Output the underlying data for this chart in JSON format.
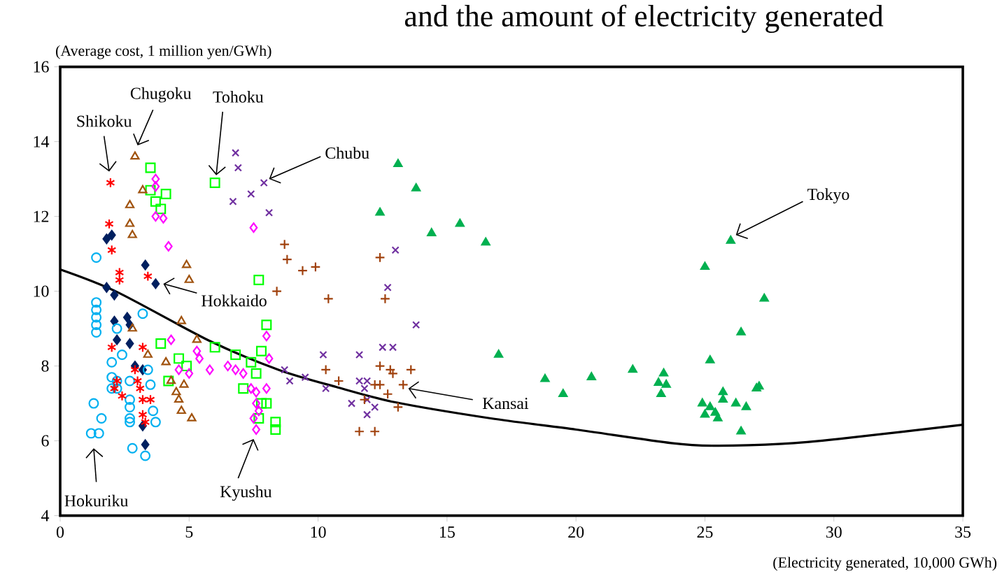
{
  "chart_data": {
    "type": "scatter",
    "title": "and the amount of electricity generated",
    "xlabel": "(Electricity generated, 10,000 GWh)",
    "ylabel": "(Average cost, 1 million yen/GWh)",
    "xlim": [
      0,
      35
    ],
    "ylim": [
      4,
      16
    ],
    "xticks": [
      0,
      5,
      10,
      15,
      20,
      25,
      30,
      35
    ],
    "yticks": [
      4,
      6,
      8,
      10,
      12,
      14,
      16
    ],
    "grid": false,
    "series": [
      {
        "name": "Hokkaido",
        "color": "#002060",
        "marker": "diamond",
        "x": [
          2.0,
          1.8,
          2.0,
          3.3,
          3.7,
          1.8,
          2.1,
          2.1,
          2.6,
          2.7,
          2.2,
          2.7,
          2.9,
          3.2,
          3.2,
          3.3
        ],
        "values": [
          11.5,
          11.4,
          null,
          10.7,
          10.2,
          10.1,
          9.9,
          9.2,
          9.3,
          9.1,
          8.7,
          8.6,
          8.0,
          7.9,
          6.4,
          5.9
        ]
      },
      {
        "name": "Tohoku",
        "color": "#00ff00",
        "marker": "square open",
        "x": [
          3.5,
          4.1,
          3.5,
          3.7,
          3.9,
          6.0,
          7.7,
          8.0,
          7.8,
          6.0,
          6.8,
          7.4,
          7.6,
          7.1,
          7.8,
          8.0,
          7.7,
          8.35,
          8.35,
          3.9,
          4.2,
          4.6,
          4.9
        ],
        "values": [
          13.3,
          12.6,
          12.7,
          12.4,
          12.2,
          12.9,
          10.3,
          9.1,
          8.4,
          8.5,
          8.3,
          8.1,
          7.8,
          7.4,
          7.0,
          7.0,
          6.6,
          6.5,
          6.3,
          8.6,
          7.6,
          8.2,
          8.0
        ]
      },
      {
        "name": "Tokyo",
        "color": "#00b050",
        "marker": "triangle",
        "x": [
          13.1,
          13.8,
          12.4,
          14.4,
          15.5,
          16.5,
          17.0,
          26.0,
          25.0,
          27.3,
          26.4,
          25.2,
          18.8,
          19.5,
          20.6,
          22.2,
          23.4,
          23.2,
          23.5,
          23.3,
          24.9,
          25.2,
          25.4,
          25.5,
          25.0,
          25.7,
          25.7,
          26.2,
          26.6,
          26.4,
          27.0,
          27.1
        ],
        "values": [
          13.4,
          12.75,
          12.1,
          11.55,
          11.8,
          11.3,
          8.3,
          11.35,
          10.65,
          9.8,
          8.9,
          8.15,
          7.65,
          7.25,
          7.7,
          7.9,
          7.8,
          7.55,
          7.5,
          7.25,
          7.0,
          6.9,
          6.75,
          6.6,
          6.7,
          7.3,
          7.1,
          7.0,
          6.9,
          6.25,
          7.4,
          7.45
        ]
      },
      {
        "name": "Chubu",
        "color": "#7030a0",
        "marker": "x",
        "x": [
          6.8,
          6.9,
          7.9,
          7.4,
          6.7,
          8.1,
          13.0,
          12.7,
          13.8,
          10.2,
          11.6,
          12.5,
          12.9,
          8.7,
          8.9,
          9.5,
          10.3,
          11.6,
          11.8,
          11.9,
          11.3,
          11.9,
          12.2,
          11.9
        ],
        "values": [
          13.7,
          13.3,
          12.9,
          12.6,
          12.4,
          12.1,
          11.1,
          10.1,
          9.1,
          8.3,
          8.3,
          8.5,
          8.5,
          7.9,
          7.6,
          7.7,
          7.4,
          7.6,
          7.4,
          7.6,
          7.0,
          7.1,
          6.9,
          6.7
        ]
      },
      {
        "name": "Hokuriku",
        "color": "#00b0f0",
        "marker": "circle open",
        "x": [
          1.4,
          1.4,
          1.4,
          1.4,
          1.4,
          1.4,
          2.2,
          3.2,
          2.4,
          2.0,
          2.0,
          2.0,
          2.7,
          2.7,
          2.7,
          2.7,
          2.7,
          1.3,
          1.6,
          1.2,
          1.5,
          2.8,
          3.3,
          3.4,
          3.5,
          3.6,
          3.7,
          2.2,
          2.2
        ],
        "values": [
          10.9,
          9.7,
          9.5,
          9.3,
          9.1,
          8.9,
          9.0,
          9.4,
          8.3,
          8.1,
          7.7,
          7.4,
          7.6,
          7.1,
          6.9,
          6.6,
          6.5,
          7.0,
          6.6,
          6.2,
          6.2,
          5.8,
          5.6,
          7.9,
          7.5,
          6.8,
          6.5,
          7.6,
          7.4
        ]
      },
      {
        "name": "Kansai",
        "color": "#a0410d",
        "marker": "plus",
        "x": [
          8.7,
          8.8,
          9.4,
          9.9,
          8.4,
          10.4,
          12.4,
          12.6,
          12.4,
          12.8,
          12.9,
          13.6,
          10.3,
          10.8,
          12.2,
          12.4,
          13.3,
          11.8,
          12.7,
          13.1,
          11.6,
          12.2
        ],
        "values": [
          11.25,
          10.85,
          10.55,
          10.65,
          10.0,
          9.8,
          10.9,
          9.8,
          8.0,
          7.9,
          7.8,
          7.9,
          7.9,
          7.6,
          7.5,
          7.5,
          7.5,
          7.1,
          7.25,
          6.9,
          6.25,
          6.25
        ]
      },
      {
        "name": "Chugoku",
        "color": "#a0520d",
        "marker": "triangle open",
        "x": [
          2.9,
          3.2,
          2.7,
          2.7,
          2.8,
          4.9,
          5.0,
          4.7,
          2.8,
          3.4,
          4.1,
          4.3,
          4.5,
          4.6,
          4.8,
          4.7,
          5.1,
          5.3
        ],
        "values": [
          13.6,
          12.7,
          12.3,
          11.8,
          11.5,
          10.7,
          10.3,
          9.2,
          9.0,
          8.3,
          8.1,
          7.6,
          7.3,
          7.1,
          7.5,
          6.8,
          6.6,
          8.7
        ]
      },
      {
        "name": "Shikoku",
        "color": "#ff0000",
        "marker": "cross",
        "x": [
          1.95,
          1.9,
          2.0,
          2.3,
          2.3,
          3.4,
          2.0,
          3.2,
          2.2,
          2.4,
          3.0,
          3.1,
          3.2,
          3.5,
          3.2,
          3.3,
          2.9,
          2.1
        ],
        "values": [
          12.9,
          11.8,
          11.1,
          10.5,
          10.3,
          10.4,
          8.5,
          8.5,
          7.6,
          7.2,
          7.6,
          7.4,
          7.1,
          7.1,
          6.7,
          6.5,
          7.9,
          7.4
        ]
      },
      {
        "name": "Kyushu",
        "color": "#ff00ff",
        "marker": "diamond open",
        "x": [
          3.7,
          3.7,
          3.7,
          4.0,
          4.2,
          4.3,
          4.6,
          5.0,
          5.3,
          7.5,
          8.0,
          8.1,
          5.4,
          5.8,
          6.5,
          6.8,
          7.1,
          7.4,
          7.6,
          8.0,
          7.6,
          7.7,
          7.6,
          7.5
        ],
        "values": [
          13.0,
          12.8,
          12.0,
          11.95,
          11.2,
          8.7,
          7.9,
          7.8,
          8.4,
          11.7,
          8.8,
          8.2,
          8.2,
          7.9,
          8.0,
          7.9,
          7.8,
          7.4,
          7.3,
          7.4,
          7.0,
          6.8,
          6.3,
          6.6
        ]
      },
      {
        "type": "line",
        "color": "#000000",
        "marker": "none",
        "x": [
          0,
          2.2,
          5.8,
          8.5,
          10.7,
          13,
          16.7,
          20,
          23.7,
          25.3,
          28,
          30.2,
          35
        ],
        "values": [
          10.58,
          9.98,
          8.67,
          7.89,
          7.44,
          7.03,
          6.6,
          6.3,
          5.94,
          5.87,
          5.92,
          6.05,
          6.43
        ]
      }
    ]
  }
}
